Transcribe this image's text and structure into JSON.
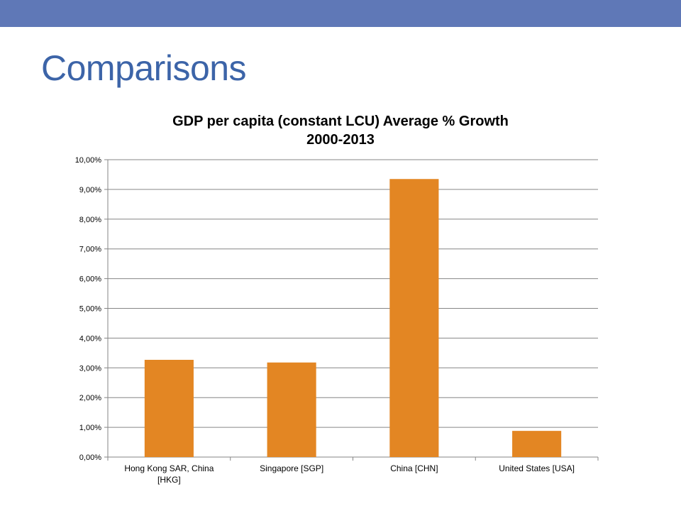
{
  "theme": {
    "bar_color": "#5f78b7",
    "title_color": "#3c64a8",
    "series_color": "#e38623"
  },
  "slide": {
    "title": "Comparisons"
  },
  "chart_data": {
    "type": "bar",
    "title": "GDP per capita (constant LCU) Average % Growth 2000-2013",
    "title_lines": [
      "GDP per capita (constant LCU) Average % Growth",
      "2000-2013"
    ],
    "xlabel": "",
    "ylabel": "",
    "ylim": [
      0,
      10
    ],
    "yticks": [
      "0,00%",
      "1,00%",
      "2,00%",
      "3,00%",
      "4,00%",
      "5,00%",
      "6,00%",
      "7,00%",
      "8,00%",
      "9,00%",
      "10,00%"
    ],
    "grid": true,
    "legend": "none",
    "categories": [
      [
        "Hong Kong SAR, China",
        "[HKG]"
      ],
      [
        "Singapore [SGP]"
      ],
      [
        "China [CHN]"
      ],
      [
        "United States [USA]"
      ]
    ],
    "values": [
      3.27,
      3.18,
      9.35,
      0.88
    ]
  }
}
